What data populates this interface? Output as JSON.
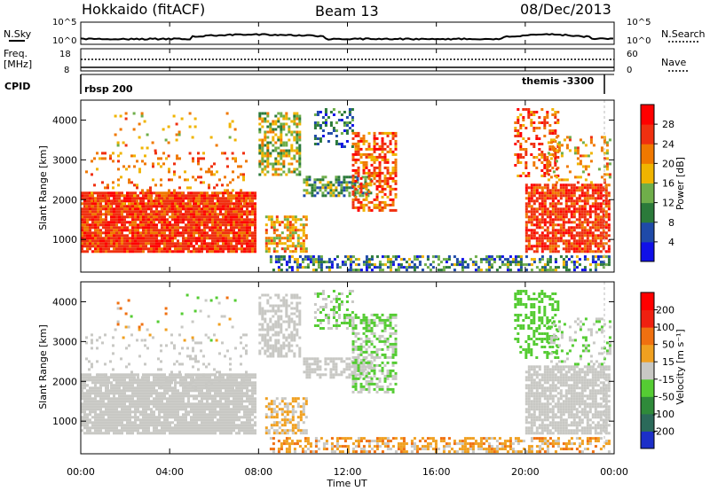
{
  "header": {
    "radar": "Hokkaido (fitACF)",
    "beam": "Beam 13",
    "date": "08/Dec/2013"
  },
  "summary": {
    "nsky_label": "N.Sky",
    "nsearch_label": "N.Search",
    "noise_ticks": [
      "10^5",
      "10^0"
    ],
    "freq_label_1": "Freq.",
    "freq_label_2": "[MHz]",
    "freq_ticks": [
      "18",
      "8"
    ],
    "nave_label": "Nave",
    "nave_ticks": [
      "60",
      "0"
    ],
    "cpid_label": "CPID",
    "cpid_left": "rbsp 200",
    "cpid_right": "themis -3300"
  },
  "chart_data": [
    {
      "type": "heatmap",
      "name": "Power",
      "ylabel": "Slant Range [km]",
      "yticks": [
        "1000",
        "2000",
        "3000",
        "4000"
      ],
      "ylim": [
        180,
        4500
      ],
      "xlim_hours": [
        0,
        24
      ],
      "colorbar_label": "Power [dB]",
      "colorbar_ticks": [
        "4",
        "8",
        "12",
        "16",
        "20",
        "24",
        "28"
      ],
      "colors": [
        "#1010e8",
        "#1f4aa8",
        "#2b7a3a",
        "#6fae4a",
        "#f0b400",
        "#f07800",
        "#f03010",
        "#ff0000"
      ]
    },
    {
      "type": "heatmap",
      "name": "Velocity",
      "ylabel": "Slant Range [km]",
      "yticks": [
        "1000",
        "2000",
        "3000",
        "4000"
      ],
      "ylim": [
        180,
        4500
      ],
      "xlim_hours": [
        0,
        24
      ],
      "colorbar_label": "Velocity [m s⁻¹]",
      "colorbar_ticks": [
        "200",
        "100",
        "50",
        "15",
        "-15",
        "-50",
        "-100",
        "-200"
      ],
      "colors": [
        "#1c2fc8",
        "#2b6a5a",
        "#2f8a3a",
        "#55cc33",
        "#c8c8c4",
        "#f0a020",
        "#f07010",
        "#f02010",
        "#ff0000"
      ]
    }
  ],
  "xaxis": {
    "label": "Time UT",
    "ticks": [
      "00:00",
      "04:00",
      "08:00",
      "12:00",
      "16:00",
      "20:00",
      "00:00"
    ]
  }
}
